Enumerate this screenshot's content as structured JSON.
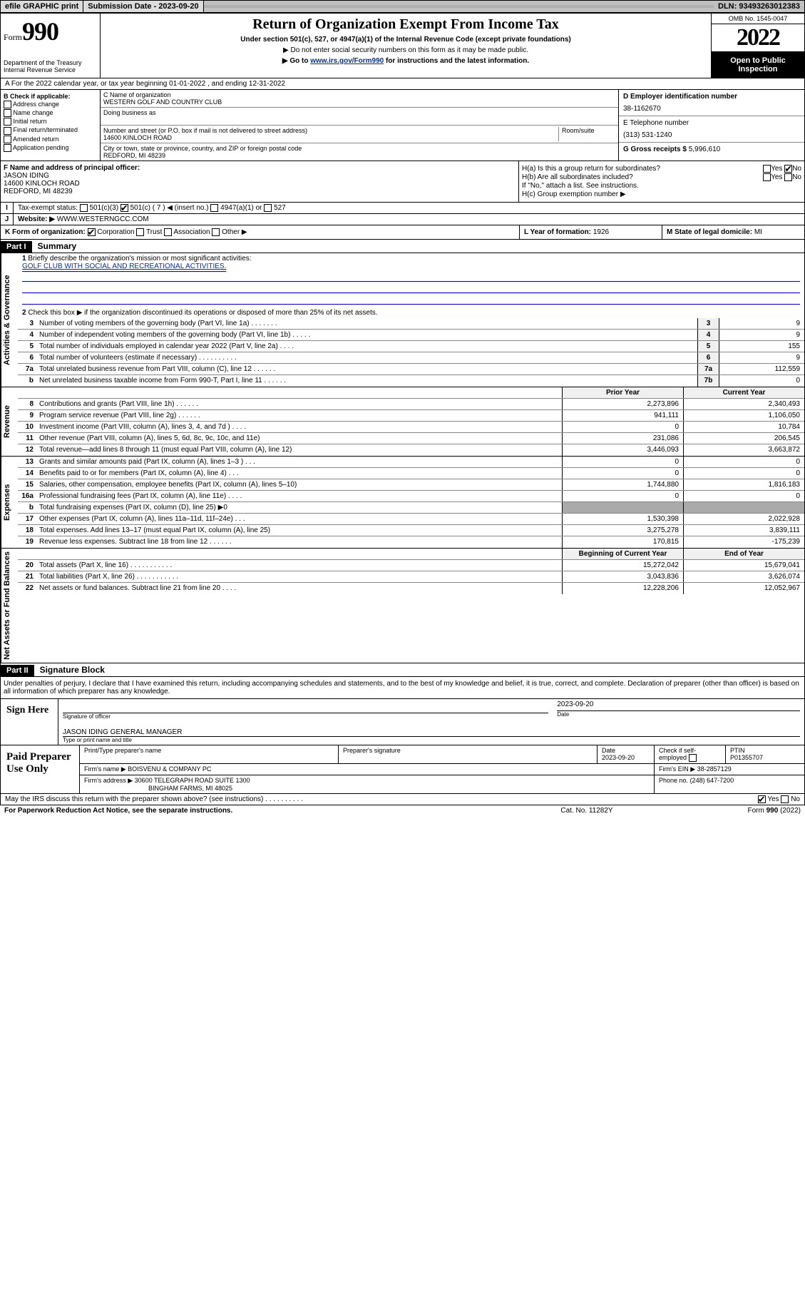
{
  "topbar": {
    "efile": "efile GRAPHIC print",
    "submission_label": "Submission Date - 2023-09-20",
    "dln": "DLN: 93493263012383"
  },
  "header": {
    "form_label": "Form",
    "form_number": "990",
    "dept": "Department of the Treasury\nInternal Revenue Service",
    "title": "Return of Organization Exempt From Income Tax",
    "subtitle": "Under section 501(c), 527, or 4947(a)(1) of the Internal Revenue Code (except private foundations)",
    "note1": "▶ Do not enter social security numbers on this form as it may be made public.",
    "note2_pre": "▶ Go to ",
    "note2_link": "www.irs.gov/Form990",
    "note2_post": " for instructions and the latest information.",
    "omb": "OMB No. 1545-0047",
    "year": "2022",
    "open": "Open to Public Inspection"
  },
  "lineA": "A For the 2022 calendar year, or tax year beginning 01-01-2022   , and ending 12-31-2022",
  "colB": {
    "title": "B Check if applicable:",
    "items": [
      "Address change",
      "Name change",
      "Initial return",
      "Final return/terminated",
      "Amended return",
      "Application pending"
    ]
  },
  "colC": {
    "name_label": "C Name of organization",
    "name": "WESTERN GOLF AND COUNTRY CLUB",
    "dba_label": "Doing business as",
    "addr_label": "Number and street (or P.O. box if mail is not delivered to street address)",
    "room_label": "Room/suite",
    "addr": "14600 KINLOCH ROAD",
    "city_label": "City or town, state or province, country, and ZIP or foreign postal code",
    "city": "REDFORD, MI  48239"
  },
  "colD": {
    "ein_label": "D Employer identification number",
    "ein": "38-1162670",
    "tel_label": "E Telephone number",
    "tel": "(313) 531-1240",
    "gross_label": "G Gross receipts $",
    "gross": "5,996,610"
  },
  "sectionF": {
    "label": "F Name and address of principal officer:",
    "name": "JASON IDING",
    "addr1": "14600 KINLOCH ROAD",
    "addr2": "REDFORD, MI  48239",
    "ha": "H(a)  Is this a group return for subordinates?",
    "hb": "H(b)  Are all subordinates included?",
    "hb_note": "If \"No,\" attach a list. See instructions.",
    "hc": "H(c)  Group exemption number ▶",
    "yes": "Yes",
    "no": "No"
  },
  "rowI": {
    "label": "Tax-exempt status:",
    "o1": "501(c)(3)",
    "o2": "501(c) ( 7 ) ◀ (insert no.)",
    "o3": "4947(a)(1) or",
    "o4": "527"
  },
  "rowJ": {
    "label": "Website: ▶",
    "value": "WWW.WESTERNGCC.COM"
  },
  "rowK": {
    "label": "K Form of organization:",
    "o1": "Corporation",
    "o2": "Trust",
    "o3": "Association",
    "o4": "Other ▶"
  },
  "rowL": {
    "label": "L Year of formation:",
    "value": "1926"
  },
  "rowM": {
    "label": "M State of legal domicile:",
    "value": "MI"
  },
  "part1": {
    "hdr": "Part I",
    "title": "Summary"
  },
  "summary": {
    "gov_label": "Activities & Governance",
    "rev_label": "Revenue",
    "exp_label": "Expenses",
    "net_label": "Net Assets or Fund Balances",
    "q1": "Briefly describe the organization's mission or most significant activities:",
    "mission": "GOLF CLUB WITH SOCIAL AND RECREATIONAL ACTIVITIES.",
    "q2": "Check this box ▶      if the organization discontinued its operations or disposed of more than 25% of its net assets.",
    "lines_gov": [
      {
        "n": "3",
        "t": "Number of voting members of the governing body (Part VI, line 1a)  .    .    .    .    .    .    .",
        "box": "3",
        "v": "9"
      },
      {
        "n": "4",
        "t": "Number of independent voting members of the governing body (Part VI, line 1b)   .    .    .    .    .",
        "box": "4",
        "v": "9"
      },
      {
        "n": "5",
        "t": "Total number of individuals employed in calendar year 2022 (Part V, line 2a)   .    .    .    .",
        "box": "5",
        "v": "155"
      },
      {
        "n": "6",
        "t": "Total number of volunteers (estimate if necessary)  .    .    .    .    .    .    .    .    .    .",
        "box": "6",
        "v": "9"
      },
      {
        "n": "7a",
        "t": "Total unrelated business revenue from Part VIII, column (C), line 12  .    .    .    .    .    .",
        "box": "7a",
        "v": "112,559"
      },
      {
        "n": "b",
        "t": "Net unrelated business taxable income from Form 990-T, Part I, line 11  .    .    .    .    .    .",
        "box": "7b",
        "v": "0"
      }
    ],
    "hdr_prior": "Prior Year",
    "hdr_current": "Current Year",
    "lines_rev": [
      {
        "n": "8",
        "t": "Contributions and grants (Part VIII, line 1h)   .    .    .    .    .    .",
        "p": "2,273,896",
        "c": "2,340,493"
      },
      {
        "n": "9",
        "t": "Program service revenue (Part VIII, line 2g)   .    .    .    .    .    .",
        "p": "941,111",
        "c": "1,106,050"
      },
      {
        "n": "10",
        "t": "Investment income (Part VIII, column (A), lines 3, 4, and 7d )   .    .    .    .",
        "p": "0",
        "c": "10,784"
      },
      {
        "n": "11",
        "t": "Other revenue (Part VIII, column (A), lines 5, 6d, 8c, 9c, 10c, and 11e)",
        "p": "231,086",
        "c": "206,545"
      },
      {
        "n": "12",
        "t": "Total revenue—add lines 8 through 11 (must equal Part VIII, column (A), line 12)",
        "p": "3,446,093",
        "c": "3,663,872"
      }
    ],
    "lines_exp": [
      {
        "n": "13",
        "t": "Grants and similar amounts paid (Part IX, column (A), lines 1–3 )   .    .    .",
        "p": "0",
        "c": "0"
      },
      {
        "n": "14",
        "t": "Benefits paid to or for members (Part IX, column (A), line 4)   .    .    .",
        "p": "0",
        "c": "0"
      },
      {
        "n": "15",
        "t": "Salaries, other compensation, employee benefits (Part IX, column (A), lines 5–10)",
        "p": "1,744,880",
        "c": "1,816,183"
      },
      {
        "n": "16a",
        "t": "Professional fundraising fees (Part IX, column (A), line 11e)  .    .    .    .",
        "p": "0",
        "c": "0"
      },
      {
        "n": "b",
        "t": "Total fundraising expenses (Part IX, column (D), line 25) ▶0",
        "p": "",
        "c": "",
        "grey": true
      },
      {
        "n": "17",
        "t": "Other expenses (Part IX, column (A), lines 11a–11d, 11f–24e)   .    .    .",
        "p": "1,530,398",
        "c": "2,022,928"
      },
      {
        "n": "18",
        "t": "Total expenses. Add lines 13–17 (must equal Part IX, column (A), line 25)",
        "p": "3,275,278",
        "c": "3,839,111"
      },
      {
        "n": "19",
        "t": "Revenue less expenses. Subtract line 18 from line 12  .    .    .    .    .    .",
        "p": "170,815",
        "c": "-175,239"
      }
    ],
    "hdr_begin": "Beginning of Current Year",
    "hdr_end": "End of Year",
    "lines_net": [
      {
        "n": "20",
        "t": "Total assets (Part X, line 16)   .    .    .    .    .    .    .    .    .    .    .",
        "p": "15,272,042",
        "c": "15,679,041"
      },
      {
        "n": "21",
        "t": "Total liabilities (Part X, line 26)   .    .    .    .    .    .    .    .    .    .    .",
        "p": "3,043,836",
        "c": "3,626,074"
      },
      {
        "n": "22",
        "t": "Net assets or fund balances. Subtract line 21 from line 20   .    .    .    .",
        "p": "12,228,206",
        "c": "12,052,967"
      }
    ]
  },
  "part2": {
    "hdr": "Part II",
    "title": "Signature Block"
  },
  "sigtext": "Under penalties of perjury, I declare that I have examined this return, including accompanying schedules and statements, and to the best of my knowledge and belief, it is true, correct, and complete. Declaration of preparer (other than officer) is based on all information of which preparer has any knowledge.",
  "sign": {
    "label": "Sign Here",
    "sig_of_officer": "Signature of officer",
    "date": "2023-09-20",
    "date_label": "Date",
    "name": "JASON IDING  GENERAL MANAGER",
    "name_label": "Type or print name and title"
  },
  "prep": {
    "label": "Paid Preparer Use Only",
    "c1": "Print/Type preparer's name",
    "c2": "Preparer's signature",
    "c3": "Date",
    "c3v": "2023-09-20",
    "c4": "Check        if self-employed",
    "c5": "PTIN",
    "c5v": "P01355707",
    "firm_label": "Firm's name     ▶",
    "firm": "BOISVENU & COMPANY PC",
    "ein_label": "Firm's EIN ▶",
    "ein": "38-2857129",
    "addr_label": "Firm's address ▶",
    "addr1": "30600 TELEGRAPH ROAD SUITE 1300",
    "addr2": "BINGHAM FARMS, MI  48025",
    "phone_label": "Phone no.",
    "phone": "(248) 647-7200"
  },
  "discuss": {
    "text": "May the IRS discuss this return with the preparer shown above? (see instructions)   .    .    .    .    .    .    .    .    .    .",
    "yes": "Yes",
    "no": "No"
  },
  "footer": {
    "l": "For Paperwork Reduction Act Notice, see the separate instructions.",
    "m": "Cat. No. 11282Y",
    "r": "Form 990 (2022)"
  }
}
